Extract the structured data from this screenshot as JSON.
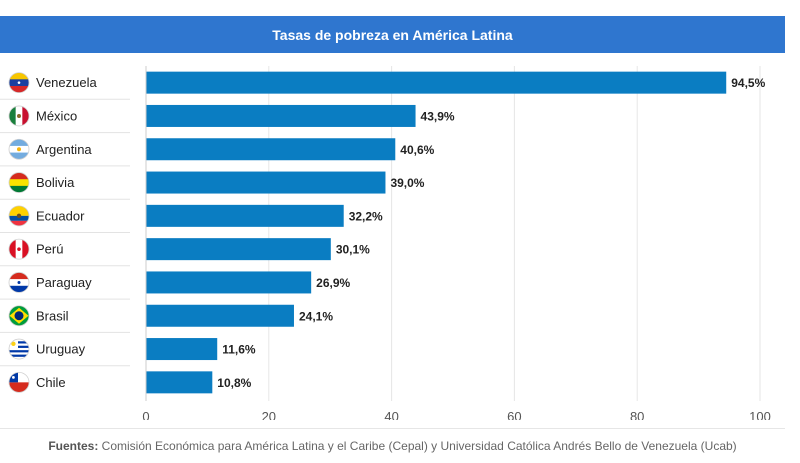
{
  "title": "Tasas de pobreza en América Latina",
  "footer": {
    "label": "Fuentes:",
    "text": " Comisión Económica para América Latina y el Caribe (Cepal) y Universidad Católica Andrés Bello de Venezuela (Ucab)"
  },
  "chart_data": {
    "type": "bar",
    "orientation": "horizontal",
    "title": "Tasas de pobreza en América Latina",
    "categories": [
      "Venezuela",
      "México",
      "Argentina",
      "Bolivia",
      "Ecuador",
      "Perú",
      "Paraguay",
      "Brasil",
      "Uruguay",
      "Chile"
    ],
    "values": [
      94.5,
      43.9,
      40.6,
      39.0,
      32.2,
      30.1,
      26.9,
      24.1,
      11.6,
      10.8
    ],
    "value_labels": [
      "94,5%",
      "43,9%",
      "40,6%",
      "39,0%",
      "32,2%",
      "30,1%",
      "26,9%",
      "24,1%",
      "11,6%",
      "10,8%"
    ],
    "xlim": [
      0,
      100
    ],
    "ticks": [
      0,
      20,
      40,
      60,
      80,
      100
    ],
    "grid": true,
    "bar_color": "#0a7dc2",
    "flag_icons": [
      "venezuela-flag-icon",
      "mexico-flag-icon",
      "argentina-flag-icon",
      "bolivia-flag-icon",
      "ecuador-flag-icon",
      "peru-flag-icon",
      "paraguay-flag-icon",
      "brasil-flag-icon",
      "uruguay-flag-icon",
      "chile-flag-icon"
    ]
  }
}
